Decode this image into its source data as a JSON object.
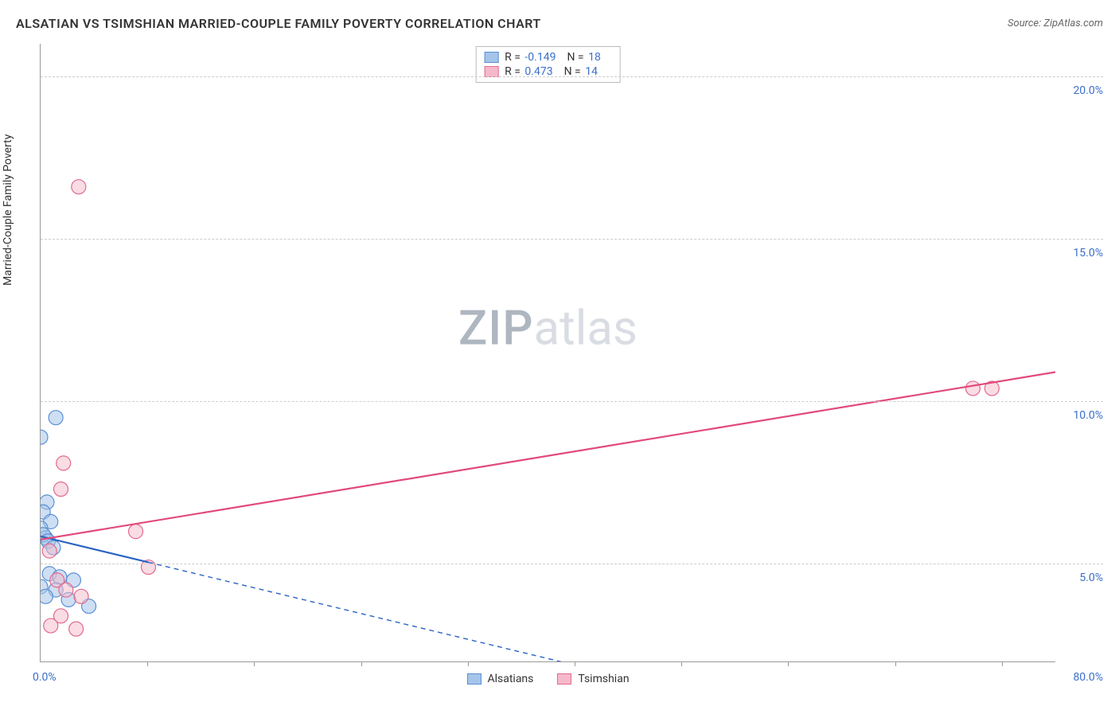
{
  "title": "ALSATIAN VS TSIMSHIAN MARRIED-COUPLE FAMILY POVERTY CORRELATION CHART",
  "source": "Source: ZipAtlas.com",
  "y_axis_label": "Married-Couple Family Poverty",
  "watermark": {
    "part1": "ZIP",
    "part2": "atlas"
  },
  "chart": {
    "type": "scatter",
    "xlim": [
      0,
      80
    ],
    "ylim": [
      2,
      21
    ],
    "x_ticks": [
      8.4,
      16.8,
      25.3,
      33.7,
      42.1,
      50.5,
      58.9,
      67.4,
      75.8
    ],
    "y_gridlines": [
      5,
      10,
      15,
      20
    ],
    "y_tick_labels": [
      "5.0%",
      "10.0%",
      "15.0%",
      "20.0%"
    ],
    "x_min_label": "0.0%",
    "x_max_label": "80.0%",
    "background_color": "#ffffff",
    "grid_color": "#cccccc",
    "axis_color": "#999999",
    "series": [
      {
        "name": "Alsatians",
        "color_fill": "#a5c4ea",
        "color_stroke": "#5a8fd6",
        "fill_opacity": 0.55,
        "marker_radius": 9,
        "points": [
          [
            1.2,
            9.5
          ],
          [
            0.0,
            8.9
          ],
          [
            0.5,
            6.9
          ],
          [
            0.2,
            6.6
          ],
          [
            0.8,
            6.3
          ],
          [
            0.0,
            6.1
          ],
          [
            0.4,
            5.8
          ],
          [
            0.7,
            4.7
          ],
          [
            1.5,
            4.6
          ],
          [
            2.6,
            4.5
          ],
          [
            0.0,
            4.3
          ],
          [
            1.2,
            4.2
          ],
          [
            0.4,
            4.0
          ],
          [
            2.2,
            3.9
          ],
          [
            3.8,
            3.7
          ],
          [
            0.2,
            5.9
          ],
          [
            0.6,
            5.7
          ],
          [
            1.0,
            5.5
          ]
        ],
        "regression": {
          "x1": 0,
          "y1": 5.85,
          "x2": 8.5,
          "y2": 5.05
        },
        "extrapolation": {
          "x1": 8.5,
          "y1": 5.05,
          "x2": 42,
          "y2": 1.9
        },
        "line_color": "#2b63c4",
        "line_width": 2.2,
        "dash": "6,5"
      },
      {
        "name": "Tsimshian",
        "color_fill": "#f4b9ca",
        "color_stroke": "#e26a8d",
        "fill_opacity": 0.5,
        "marker_radius": 9,
        "points": [
          [
            3.0,
            16.6
          ],
          [
            73.5,
            10.4
          ],
          [
            75.0,
            10.4
          ],
          [
            1.8,
            8.1
          ],
          [
            1.6,
            7.3
          ],
          [
            7.5,
            6.0
          ],
          [
            0.7,
            5.4
          ],
          [
            8.5,
            4.9
          ],
          [
            1.3,
            4.5
          ],
          [
            2.0,
            4.2
          ],
          [
            3.2,
            4.0
          ],
          [
            1.6,
            3.4
          ],
          [
            2.8,
            3.0
          ],
          [
            0.8,
            3.1
          ]
        ],
        "regression": {
          "x1": 0,
          "y1": 5.75,
          "x2": 80,
          "y2": 10.9
        },
        "line_color": "#e14a7a",
        "line_width": 2.2
      }
    ],
    "stats_box": [
      {
        "series_idx": 0,
        "r": "-0.149",
        "n": "18"
      },
      {
        "series_idx": 1,
        "r": "0.473",
        "n": "14"
      }
    ],
    "tick_label_color": "#3b6fc9",
    "tick_label_fontsize": 14
  }
}
